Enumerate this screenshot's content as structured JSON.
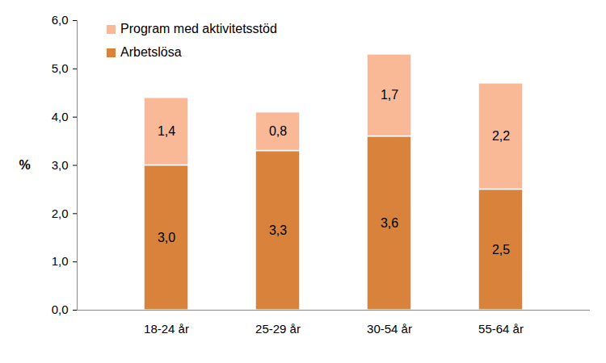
{
  "chart_data": {
    "type": "bar",
    "stacked": true,
    "y_label": "%",
    "categories": [
      "18-24 år",
      "25-29 år",
      "30-54 år",
      "55-64 år"
    ],
    "series": [
      {
        "name": "Arbetslösa",
        "color": "#d9823b",
        "values": [
          3.0,
          3.3,
          3.6,
          2.5
        ],
        "value_labels": [
          "3,0",
          "3,3",
          "3,6",
          "2,5"
        ]
      },
      {
        "name": "Program med aktivitetsstöd",
        "color": "#f9b896",
        "values": [
          1.4,
          0.8,
          1.7,
          2.2
        ],
        "value_labels": [
          "1,4",
          "0,8",
          "1,7",
          "2,2"
        ]
      }
    ],
    "ylim": [
      0,
      6
    ],
    "yticks": [
      {
        "value": 0,
        "label": "0,0"
      },
      {
        "value": 1,
        "label": "1,0"
      },
      {
        "value": 2,
        "label": "2,0"
      },
      {
        "value": 3,
        "label": "3,0"
      },
      {
        "value": 4,
        "label": "4,0"
      },
      {
        "value": 5,
        "label": "5,0"
      },
      {
        "value": 6,
        "label": "6,0"
      }
    ],
    "grid": false,
    "legend": "top-left",
    "data_labels": true
  }
}
